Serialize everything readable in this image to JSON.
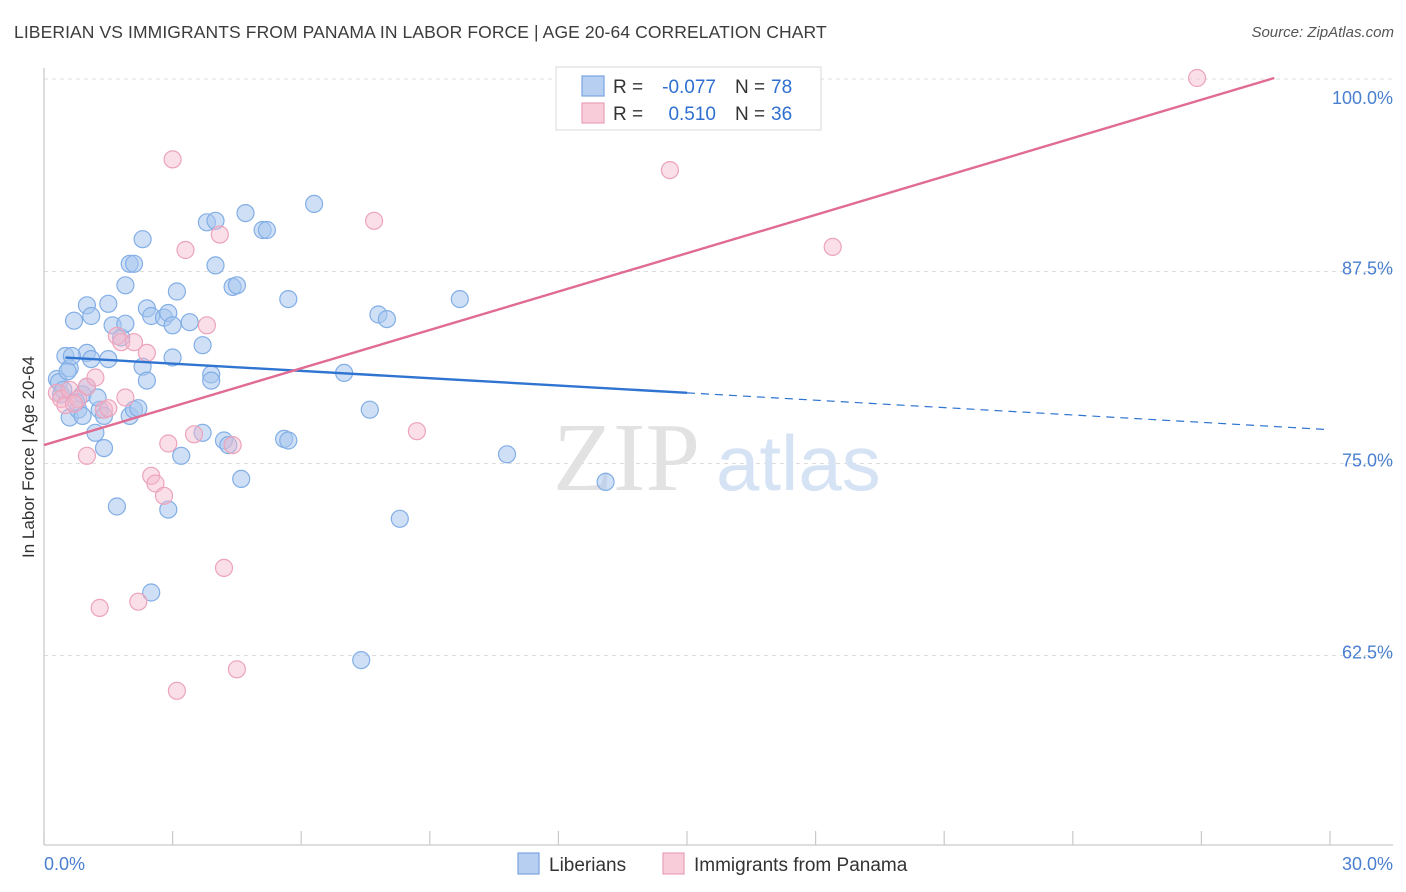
{
  "title": "LIBERIAN VS IMMIGRANTS FROM PANAMA IN LABOR FORCE | AGE 20-64 CORRELATION CHART",
  "source": "Source: ZipAtlas.com",
  "watermark": {
    "zip": "ZIP",
    "atlas": "atlas"
  },
  "legend_top": [
    {
      "r_label": "R =",
      "r_value": "-0.077",
      "n_label": "N =",
      "n_value": "78"
    },
    {
      "r_label": "R =",
      "r_value": "0.510",
      "n_label": "N =",
      "n_value": "36"
    }
  ],
  "chart_data": {
    "type": "scatter",
    "title": "LIBERIAN VS IMMIGRANTS FROM PANAMA IN LABOR FORCE | AGE 20-64 CORRELATION CHART",
    "xlabel": "",
    "ylabel": "In Labor Force | Age 20-64",
    "xlim": [
      0,
      30
    ],
    "ylim": [
      50,
      101
    ],
    "x_tick_labels": [
      "0.0%",
      "30.0%"
    ],
    "y_ticks": [
      62.5,
      75.0,
      87.5,
      100.0
    ],
    "y_tick_labels": [
      "62.5%",
      "75.0%",
      "87.5%",
      "100.0%"
    ],
    "grid": true,
    "colors": {
      "liberians": "#a7c7ef",
      "liberians_line": "#2f74d0",
      "panama": "#f5b8cb",
      "panama_line": "#e06c93"
    },
    "series": [
      {
        "name": "Liberians",
        "r": -0.077,
        "n": 78,
        "trend": {
          "x0": 0.5,
          "y0": 81.9,
          "x1": 15.0,
          "y1": 79.6,
          "x_dash_end": 30.0,
          "y_dash_end": 77.2
        },
        "points": [
          [
            0.3,
            80.5
          ],
          [
            0.4,
            79.5
          ],
          [
            0.5,
            82.0
          ],
          [
            0.6,
            78.0
          ],
          [
            0.6,
            81.2
          ],
          [
            0.7,
            84.3
          ],
          [
            0.8,
            78.5
          ],
          [
            0.9,
            79.5
          ],
          [
            0.9,
            78.1
          ],
          [
            1.0,
            80.0
          ],
          [
            1.0,
            82.2
          ],
          [
            1.0,
            85.3
          ],
          [
            1.1,
            81.8
          ],
          [
            1.1,
            84.6
          ],
          [
            1.2,
            77.0
          ],
          [
            1.3,
            78.5
          ],
          [
            1.4,
            76.0
          ],
          [
            1.4,
            78.1
          ],
          [
            1.5,
            85.4
          ],
          [
            1.5,
            81.8
          ],
          [
            1.6,
            84.0
          ],
          [
            1.7,
            72.2
          ],
          [
            1.8,
            83.2
          ],
          [
            1.9,
            86.6
          ],
          [
            1.9,
            84.1
          ],
          [
            2.0,
            78.1
          ],
          [
            2.0,
            88.0
          ],
          [
            2.1,
            78.5
          ],
          [
            2.1,
            88.0
          ],
          [
            2.3,
            89.6
          ],
          [
            2.3,
            81.3
          ],
          [
            2.4,
            85.1
          ],
          [
            2.4,
            80.4
          ],
          [
            2.5,
            84.6
          ],
          [
            2.5,
            66.6
          ],
          [
            2.8,
            84.5
          ],
          [
            2.9,
            84.8
          ],
          [
            2.9,
            72.0
          ],
          [
            3.0,
            84.0
          ],
          [
            3.0,
            81.9
          ],
          [
            3.1,
            86.2
          ],
          [
            3.2,
            75.5
          ],
          [
            3.4,
            84.2
          ],
          [
            3.7,
            77.0
          ],
          [
            3.7,
            82.7
          ],
          [
            3.8,
            90.7
          ],
          [
            3.9,
            80.8
          ],
          [
            3.9,
            80.4
          ],
          [
            4.0,
            90.8
          ],
          [
            4.0,
            87.9
          ],
          [
            4.2,
            76.5
          ],
          [
            4.3,
            76.2
          ],
          [
            4.4,
            86.5
          ],
          [
            4.5,
            86.6
          ],
          [
            4.6,
            74.0
          ],
          [
            4.7,
            91.3
          ],
          [
            5.1,
            90.2
          ],
          [
            5.2,
            90.2
          ],
          [
            5.6,
            76.6
          ],
          [
            5.7,
            76.5
          ],
          [
            5.7,
            85.7
          ],
          [
            6.3,
            91.9
          ],
          [
            7.0,
            80.9
          ],
          [
            7.4,
            62.2
          ],
          [
            7.6,
            78.5
          ],
          [
            7.8,
            84.7
          ],
          [
            8.0,
            84.4
          ],
          [
            8.3,
            71.4
          ],
          [
            9.7,
            85.7
          ],
          [
            10.8,
            75.6
          ],
          [
            13.1,
            73.8
          ],
          [
            0.35,
            80.3
          ],
          [
            0.45,
            79.8
          ],
          [
            0.55,
            81.0
          ],
          [
            0.75,
            79.0
          ],
          [
            2.2,
            78.6
          ],
          [
            0.65,
            82.0
          ],
          [
            1.25,
            79.3
          ]
        ]
      },
      {
        "name": "Immigrants from Panama",
        "r": 0.51,
        "n": 36,
        "trend": {
          "x0": 0.0,
          "y0": 76.2,
          "x1": 28.7,
          "y1": 100.1
        },
        "points": [
          [
            0.3,
            79.6
          ],
          [
            0.4,
            79.2
          ],
          [
            0.5,
            78.8
          ],
          [
            0.6,
            79.8
          ],
          [
            0.8,
            79.2
          ],
          [
            1.0,
            80.0
          ],
          [
            1.0,
            75.5
          ],
          [
            1.2,
            80.6
          ],
          [
            1.3,
            65.6
          ],
          [
            1.4,
            78.5
          ],
          [
            1.5,
            78.6
          ],
          [
            1.7,
            83.3
          ],
          [
            1.8,
            82.9
          ],
          [
            1.9,
            79.3
          ],
          [
            2.1,
            82.9
          ],
          [
            2.2,
            66.0
          ],
          [
            2.4,
            82.2
          ],
          [
            2.5,
            74.2
          ],
          [
            2.6,
            73.7
          ],
          [
            2.8,
            72.9
          ],
          [
            2.9,
            76.3
          ],
          [
            3.0,
            94.8
          ],
          [
            3.1,
            60.2
          ],
          [
            3.3,
            88.9
          ],
          [
            3.5,
            76.9
          ],
          [
            3.8,
            84.0
          ],
          [
            4.1,
            89.9
          ],
          [
            4.2,
            68.2
          ],
          [
            4.4,
            76.2
          ],
          [
            4.5,
            61.6
          ],
          [
            7.7,
            90.8
          ],
          [
            8.7,
            77.1
          ],
          [
            14.6,
            94.1
          ],
          [
            18.4,
            89.1
          ],
          [
            26.9,
            100.1
          ],
          [
            0.7,
            78.9
          ]
        ]
      }
    ]
  },
  "legend_bottom": [
    "Liberians",
    "Immigrants from Panama"
  ]
}
